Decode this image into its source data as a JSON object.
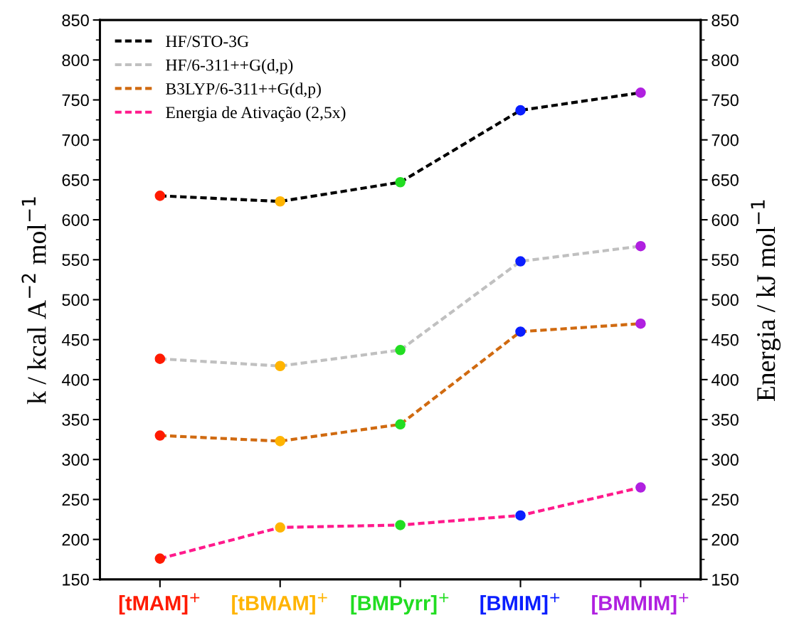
{
  "chart_data": {
    "type": "line",
    "ylabel": "k / kcal A$^{−2}$ mol$^{−1}$",
    "y2label": "Energia / kJ mol$^{−1}$",
    "categories": [
      "[tMAM]$^{+}$",
      "[tBMAM]$^{+}$",
      "[BMPyrr]$^{+}$",
      "[BMIM]$^{+}$",
      "[BMMIM]$^{+}$"
    ],
    "colors": [
      "#ff1a00",
      "#ffb400",
      "#22dd22",
      "#0a1eff",
      "#b020e0"
    ],
    "series": [
      {
        "name": "HF/STO-3G",
        "color": "#000000",
        "values": [
          630,
          623,
          647,
          737,
          759
        ]
      },
      {
        "name": "HF/6-311++G(d,p)",
        "color": "#c0c0c0",
        "values": [
          426,
          417,
          437,
          548,
          567
        ]
      },
      {
        "name": "B3LYP/6-311++G(d,p)",
        "color": "#d06a10",
        "values": [
          330,
          323,
          344,
          460,
          470
        ]
      },
      {
        "name": "Energia de Ativação (2,5x)",
        "color": "#ff1a8c",
        "values": [
          176,
          215,
          218,
          230,
          265
        ]
      }
    ],
    "ylim": [
      150,
      850
    ],
    "yticks": [
      150,
      200,
      250,
      300,
      350,
      400,
      450,
      500,
      550,
      600,
      650,
      700,
      750,
      800,
      850
    ],
    "y2lim": [
      150,
      850
    ],
    "y2ticks": [
      150,
      200,
      250,
      300,
      350,
      400,
      450,
      500,
      550,
      600,
      650,
      700,
      750,
      800,
      850
    ],
    "grid": false,
    "legend": "top left",
    "marker": "circle",
    "line_style": "dashed"
  }
}
